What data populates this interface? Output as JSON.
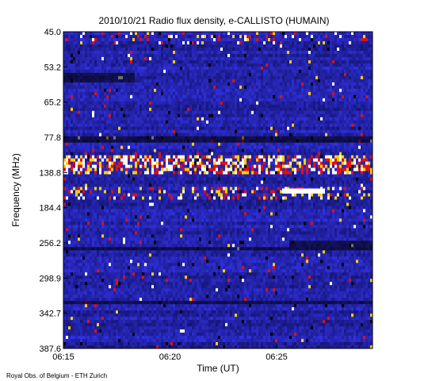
{
  "chart_data": {
    "type": "heatmap",
    "title": "2010/10/21  Radio flux density, e-CALLISTO (HUMAIN)",
    "xlabel": "Time (UT)",
    "ylabel": "Frequency (MHz)",
    "x_ticks": [
      {
        "label": "06:15",
        "minutes": 0
      },
      {
        "label": "06:20",
        "minutes": 5
      },
      {
        "label": "06:25",
        "minutes": 10
      }
    ],
    "x_range_minutes": [
      0,
      14.5
    ],
    "y_tick_labels": [
      "45.0",
      "53.2",
      "65.2",
      "77.8",
      "138.8",
      "184.4",
      "256.2",
      "298.9",
      "342.7",
      "387.6"
    ],
    "y_range": [
      "45.0",
      "387.6"
    ],
    "grid": false,
    "legend": "none",
    "colors": {
      "background": "#0a0a5c",
      "base": "#1a1aa8",
      "bright_blue": "#3030ff",
      "red": "#e01010",
      "yellow": "#ffd000",
      "white": "#ffffff",
      "black": "#000000"
    }
  },
  "credit": "Royal Obs. of Belgium - ETH Zurich"
}
